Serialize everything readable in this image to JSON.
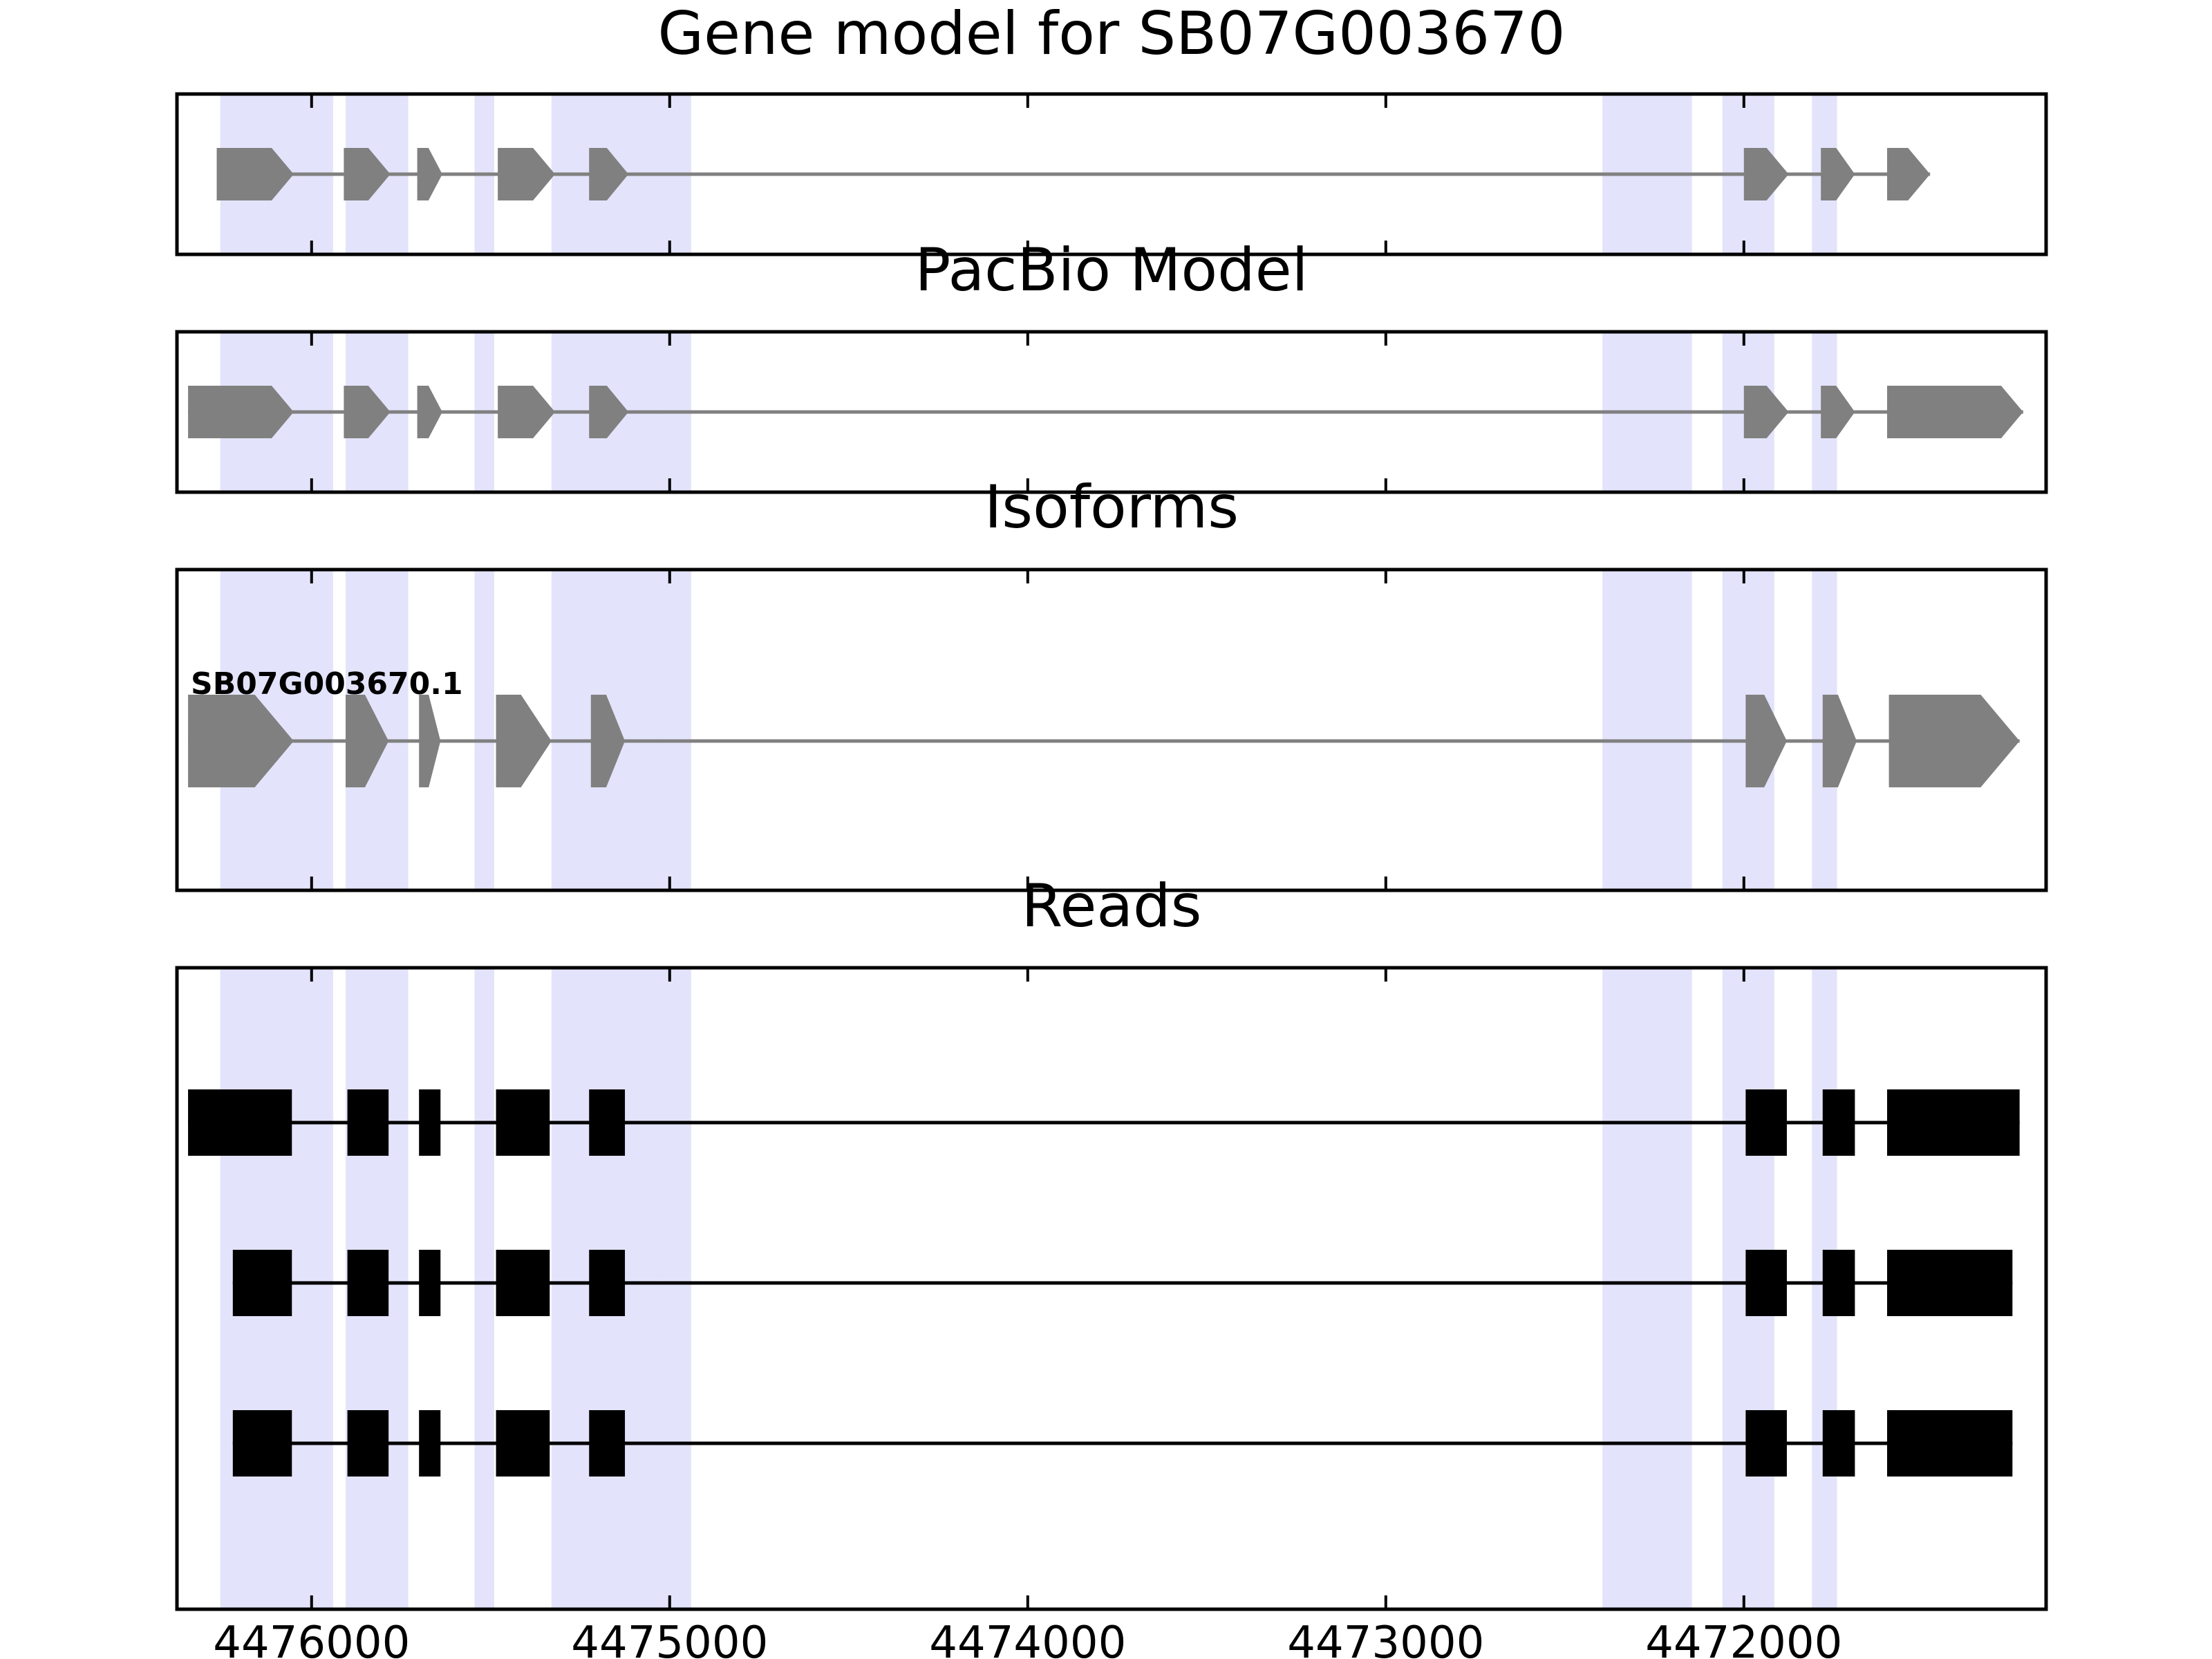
{
  "chart_data": {
    "type": "gene-structure",
    "x_axis": {
      "direction": "reversed",
      "xlim": [
        4476376,
        4471156
      ],
      "ticks": [
        4476000,
        4475000,
        4474000,
        4473000,
        4472000
      ],
      "tick_labels": [
        "4476000",
        "4475000",
        "4474000",
        "4473000",
        "4472000"
      ]
    },
    "exon_highlights": [
      [
        4475940,
        4476255
      ],
      [
        4475730,
        4475905
      ],
      [
        4475490,
        4475545
      ],
      [
        4474975,
        4475330
      ],
      [
        4474940,
        4475025
      ],
      [
        4472145,
        4472395
      ],
      [
        4471915,
        4472060
      ],
      [
        4471740,
        4471810
      ]
    ],
    "highlight_color": "#e3e3fb",
    "panels": [
      {
        "title": "Gene model for SB07G003670",
        "kind": "gene",
        "color": "#808080",
        "exons": [
          [
            4476265,
            4476050
          ],
          [
            4475910,
            4475780
          ],
          [
            4475705,
            4475635
          ],
          [
            4475480,
            4475320
          ],
          [
            4475225,
            4475115
          ],
          [
            4472000,
            4471875
          ],
          [
            4471785,
            4471690
          ],
          [
            4471600,
            4471480
          ]
        ]
      },
      {
        "title": "PacBio Model",
        "kind": "gene",
        "color": "#808080",
        "exons": [
          [
            4476345,
            4476050
          ],
          [
            4475910,
            4475780
          ],
          [
            4475705,
            4475635
          ],
          [
            4475480,
            4475320
          ],
          [
            4475225,
            4475115
          ],
          [
            4472000,
            4471875
          ],
          [
            4471785,
            4471690
          ],
          [
            4471600,
            4471220
          ]
        ]
      },
      {
        "title": "Isoforms",
        "kind": "isoform",
        "color": "#808080",
        "isoform_label": "SB07G003670.1",
        "exons": [
          [
            4476345,
            4476050
          ],
          [
            4475905,
            4475785
          ],
          [
            4475700,
            4475640
          ],
          [
            4475485,
            4475330
          ],
          [
            4475220,
            4475125
          ],
          [
            4471995,
            4471880
          ],
          [
            4471780,
            4471685
          ],
          [
            4471595,
            4471230
          ]
        ]
      },
      {
        "title": "Reads",
        "kind": "reads",
        "color": "#000000",
        "reads": [
          [
            [
              4476345,
              4476055
            ],
            [
              4475900,
              4475785
            ],
            [
              4475700,
              4475640
            ],
            [
              4475485,
              4475335
            ],
            [
              4475225,
              4475125
            ],
            [
              4471995,
              4471880
            ],
            [
              4471780,
              4471690
            ],
            [
              4471600,
              4471230
            ]
          ],
          [
            [
              4476220,
              4476055
            ],
            [
              4475900,
              4475785
            ],
            [
              4475700,
              4475640
            ],
            [
              4475485,
              4475335
            ],
            [
              4475225,
              4475125
            ],
            [
              4471995,
              4471880
            ],
            [
              4471780,
              4471690
            ],
            [
              4471600,
              4471250
            ]
          ],
          [
            [
              4476220,
              4476055
            ],
            [
              4475900,
              4475785
            ],
            [
              4475700,
              4475640
            ],
            [
              4475485,
              4475335
            ],
            [
              4475225,
              4475125
            ],
            [
              4471995,
              4471880
            ],
            [
              4471780,
              4471690
            ],
            [
              4471600,
              4471250
            ]
          ]
        ]
      }
    ]
  }
}
